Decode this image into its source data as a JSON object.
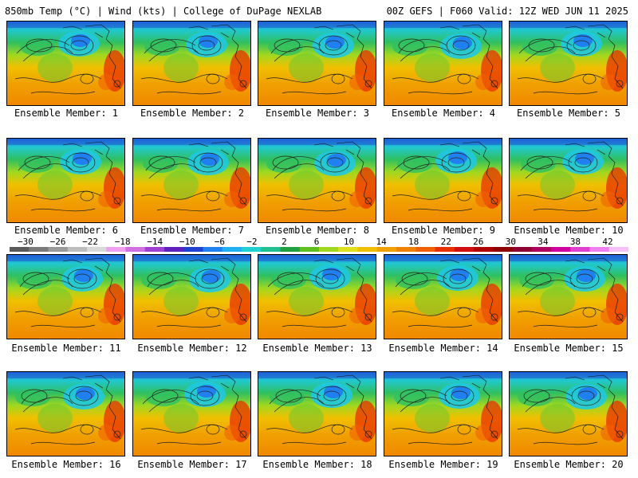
{
  "header": {
    "left": "850mb Temp (°C) | Wind (kts) | College of DuPage NEXLAB",
    "right": "00Z GEFS | F060 Valid: 12Z WED JUN 11 2025"
  },
  "members": [
    {
      "label": "Ensemble Member: 1"
    },
    {
      "label": "Ensemble Member: 2"
    },
    {
      "label": "Ensemble Member: 3"
    },
    {
      "label": "Ensemble Member: 4"
    },
    {
      "label": "Ensemble Member: 5"
    },
    {
      "label": "Ensemble Member: 6"
    },
    {
      "label": "Ensemble Member: 7"
    },
    {
      "label": "Ensemble Member: 8"
    },
    {
      "label": "Ensemble Member: 9"
    },
    {
      "label": "Ensemble Member: 10"
    },
    {
      "label": "Ensemble Member: 11"
    },
    {
      "label": "Ensemble Member: 12"
    },
    {
      "label": "Ensemble Member: 13"
    },
    {
      "label": "Ensemble Member: 14"
    },
    {
      "label": "Ensemble Member: 15"
    },
    {
      "label": "Ensemble Member: 16"
    },
    {
      "label": "Ensemble Member: 17"
    },
    {
      "label": "Ensemble Member: 18"
    },
    {
      "label": "Ensemble Member: 19"
    },
    {
      "label": "Ensemble Member: 20"
    }
  ],
  "colorbar": {
    "labels": [
      "−30",
      "−26",
      "−22",
      "−18",
      "−14",
      "−10",
      "−6",
      "−2",
      "2",
      "6",
      "10",
      "14",
      "18",
      "22",
      "26",
      "30",
      "34",
      "38",
      "42"
    ],
    "colors": [
      "#5a5a5a",
      "#7a7a7a",
      "#9a9a9a",
      "#bdbdbd",
      "#d9d9d9",
      "#f0a0f0",
      "#d070e0",
      "#a040d0",
      "#6020c0",
      "#2040d0",
      "#2080f0",
      "#20b0f0",
      "#20d0d0",
      "#20c090",
      "#20a040",
      "#60c020",
      "#a0d820",
      "#e0e020",
      "#f0c000",
      "#f0a000",
      "#f08000",
      "#f06000",
      "#e83000",
      "#d01010",
      "#b00000",
      "#900000",
      "#900030",
      "#b00060",
      "#d000a0",
      "#e040d0",
      "#f080f0",
      "#f8c0f8"
    ]
  }
}
